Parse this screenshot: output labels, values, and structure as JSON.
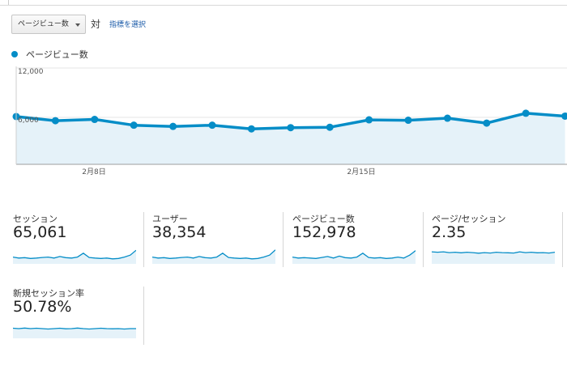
{
  "controls": {
    "metric_select": "ページビュー数",
    "vs_label": "対",
    "select_metric_link": "指標を選択"
  },
  "legend": {
    "label": "ページビュー数",
    "color": "#058dc7"
  },
  "colors": {
    "line": "#058dc7",
    "area": "#e5f2f9",
    "spark_area": "#e5f2f9"
  },
  "chart_data": {
    "type": "area",
    "title": "",
    "series": [
      {
        "name": "ページビュー数",
        "values": [
          6100,
          5600,
          5750,
          5050,
          4900,
          5050,
          4600,
          4750,
          4800,
          5700,
          5650,
          5900,
          5300,
          6500,
          6150
        ]
      }
    ],
    "ylim": [
      0,
      12000
    ],
    "y_ticks": [
      "12,000",
      "6,000"
    ],
    "x_tick_labels": [
      "2月8日",
      "2月15日"
    ],
    "grid": true
  },
  "scorecards": [
    {
      "label": "セッション",
      "value": "65,061",
      "spark": [
        0.35,
        0.3,
        0.32,
        0.28,
        0.3,
        0.33,
        0.35,
        0.3,
        0.38,
        0.32,
        0.3,
        0.35,
        0.55,
        0.33,
        0.3,
        0.28,
        0.3,
        0.26,
        0.28,
        0.35,
        0.45,
        0.7
      ]
    },
    {
      "label": "ユーザー",
      "value": "38,354",
      "spark": [
        0.35,
        0.3,
        0.32,
        0.28,
        0.3,
        0.33,
        0.35,
        0.3,
        0.38,
        0.32,
        0.3,
        0.35,
        0.55,
        0.33,
        0.3,
        0.28,
        0.3,
        0.26,
        0.28,
        0.35,
        0.45,
        0.72
      ]
    },
    {
      "label": "ページビュー数",
      "value": "152,978",
      "spark": [
        0.35,
        0.3,
        0.32,
        0.3,
        0.28,
        0.33,
        0.38,
        0.3,
        0.4,
        0.32,
        0.3,
        0.35,
        0.55,
        0.33,
        0.3,
        0.32,
        0.28,
        0.3,
        0.35,
        0.3,
        0.45,
        0.68
      ]
    },
    {
      "label": "ページ/セッション",
      "value": "2.35",
      "spark": [
        0.62,
        0.6,
        0.62,
        0.58,
        0.6,
        0.57,
        0.6,
        0.58,
        0.55,
        0.58,
        0.56,
        0.6,
        0.58,
        0.57,
        0.56,
        0.62,
        0.58,
        0.6,
        0.57,
        0.58,
        0.56,
        0.6
      ]
    },
    {
      "label": "新規セッション率",
      "value": "50.78%",
      "spark": [
        0.52,
        0.5,
        0.53,
        0.5,
        0.52,
        0.5,
        0.48,
        0.5,
        0.52,
        0.49,
        0.5,
        0.53,
        0.5,
        0.48,
        0.5,
        0.52,
        0.5,
        0.49,
        0.5,
        0.48,
        0.5,
        0.5
      ]
    }
  ]
}
